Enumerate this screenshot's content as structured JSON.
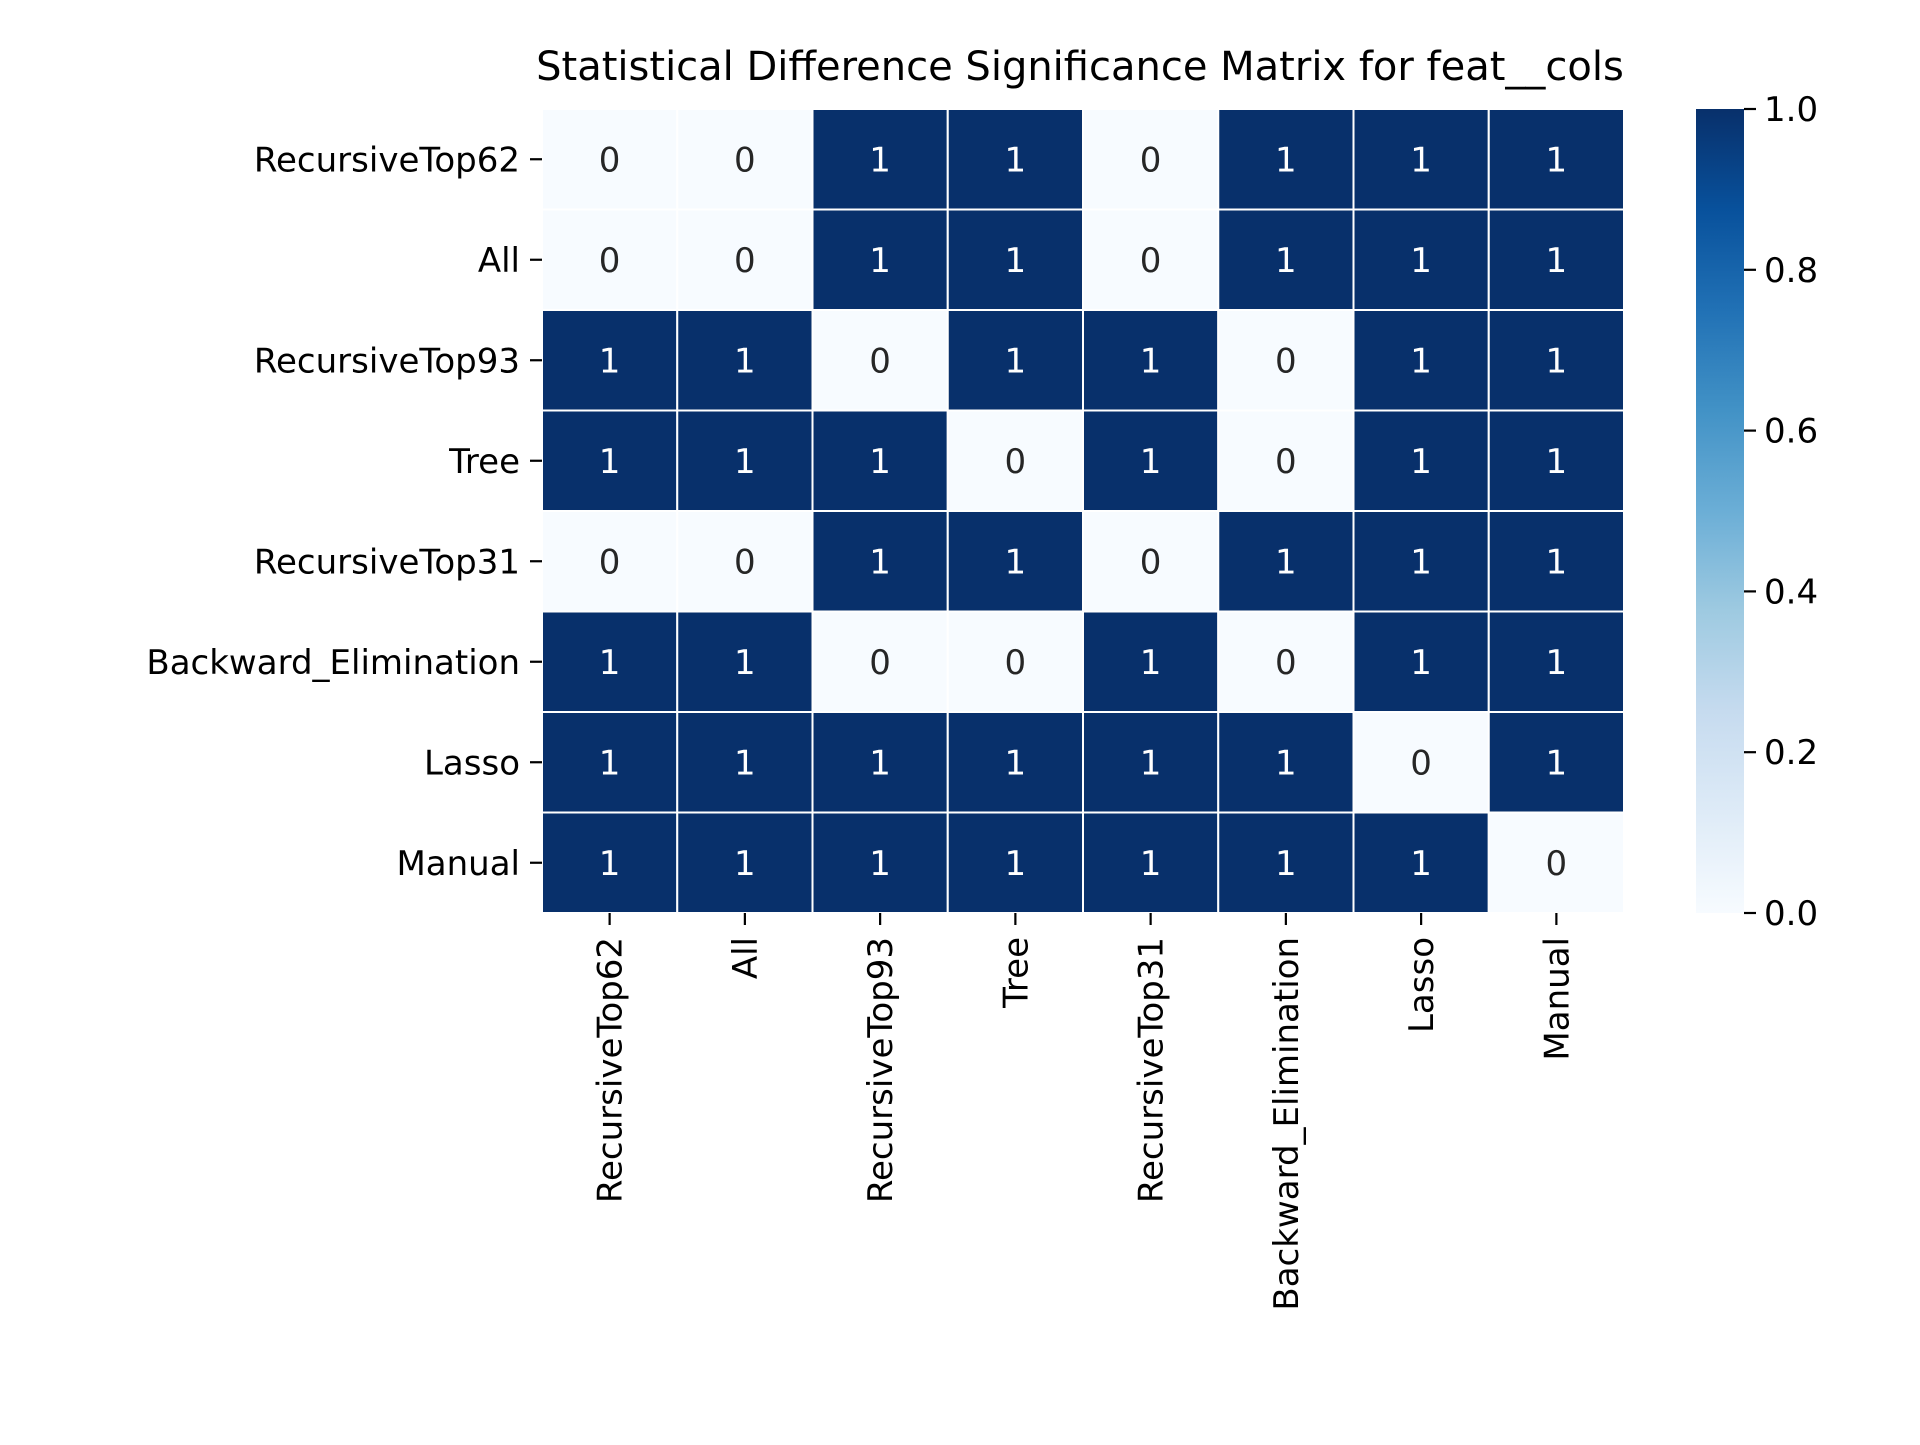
{
  "chart_data": {
    "type": "heatmap",
    "title": "Statistical Difference Significance Matrix for feat__cols",
    "xlabel": "",
    "ylabel": "",
    "categories": [
      "RecursiveTop62",
      "All",
      "RecursiveTop93",
      "Tree",
      "RecursiveTop31",
      "Backward_Elimination",
      "Lasso",
      "Manual"
    ],
    "rows": [
      "RecursiveTop62",
      "All",
      "RecursiveTop93",
      "Tree",
      "RecursiveTop31",
      "Backward_Elimination",
      "Lasso",
      "Manual"
    ],
    "values": [
      [
        0,
        0,
        1,
        1,
        0,
        1,
        1,
        1
      ],
      [
        0,
        0,
        1,
        1,
        0,
        1,
        1,
        1
      ],
      [
        1,
        1,
        0,
        1,
        1,
        0,
        1,
        1
      ],
      [
        1,
        1,
        1,
        0,
        1,
        0,
        1,
        1
      ],
      [
        0,
        0,
        1,
        1,
        0,
        1,
        1,
        1
      ],
      [
        1,
        1,
        0,
        0,
        1,
        0,
        1,
        1
      ],
      [
        1,
        1,
        1,
        1,
        1,
        1,
        0,
        1
      ],
      [
        1,
        1,
        1,
        1,
        1,
        1,
        1,
        0
      ]
    ],
    "annotated": true,
    "colormap": "Blues",
    "color_low": "#f7fbff",
    "color_high": "#08306b",
    "vmin": 0,
    "vmax": 1,
    "colorbar_ticks": [
      "0.0",
      "0.2",
      "0.4",
      "0.6",
      "0.8",
      "1.0"
    ],
    "grid": false,
    "legend": "colorbar-right"
  }
}
